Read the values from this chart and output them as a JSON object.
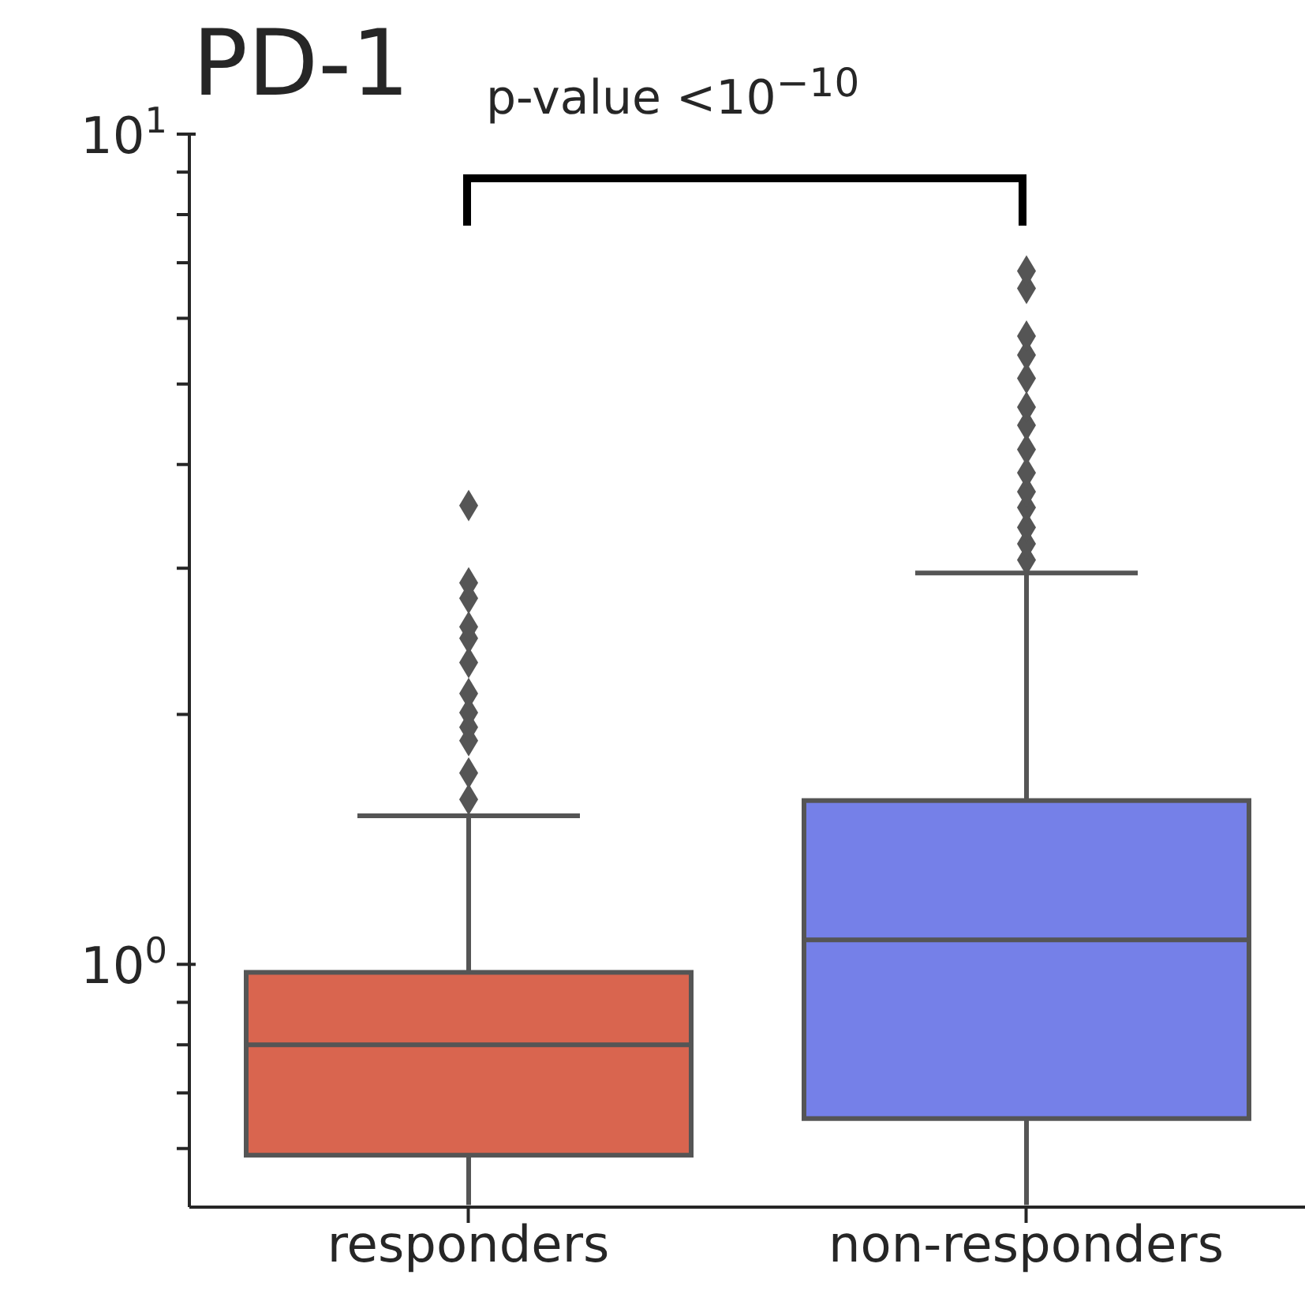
{
  "chart_data": {
    "type": "box",
    "title": "PD-1",
    "annotations": [
      "p-value <10$^{−10}$"
    ],
    "categories": [
      "responders",
      "non-responders"
    ],
    "colors": [
      "#d9654f",
      "#7580e8"
    ],
    "boxes": [
      {
        "low": 0.513,
        "q1": 0.589,
        "median": 0.8,
        "q3": 0.978,
        "high": 1.51,
        "outliers": [
          1.58,
          1.7,
          1.86,
          1.93,
          2.01,
          2.12,
          2.31,
          2.47,
          2.55,
          2.76,
          2.88,
          3.57
        ]
      },
      {
        "low": 0.513,
        "q1": 0.652,
        "median": 1.07,
        "q3": 1.575,
        "high": 2.96,
        "outliers": [
          3.07,
          3.21,
          3.36,
          3.55,
          3.71,
          3.91,
          4.17,
          4.46,
          4.69,
          5.08,
          5.42,
          5.71,
          6.52,
          6.84
        ]
      }
    ],
    "log": "y",
    "ylim": [
      0.51,
      10
    ],
    "yticks": [
      {
        "value": 0.6,
        "label": null
      },
      {
        "value": 0.7,
        "label": null
      },
      {
        "value": 0.8,
        "label": null
      },
      {
        "value": 0.9,
        "label": null
      },
      {
        "value": 1,
        "label": "10$^{0}$"
      },
      {
        "value": 2,
        "label": null
      },
      {
        "value": 3,
        "label": null
      },
      {
        "value": 4,
        "label": null
      },
      {
        "value": 5,
        "label": null
      },
      {
        "value": 6,
        "label": null
      },
      {
        "value": 7,
        "label": null
      },
      {
        "value": 8,
        "label": null
      },
      {
        "value": 9,
        "label": null
      },
      {
        "value": 10,
        "label": "10$^{1}$"
      }
    ],
    "marker": "diamond"
  }
}
